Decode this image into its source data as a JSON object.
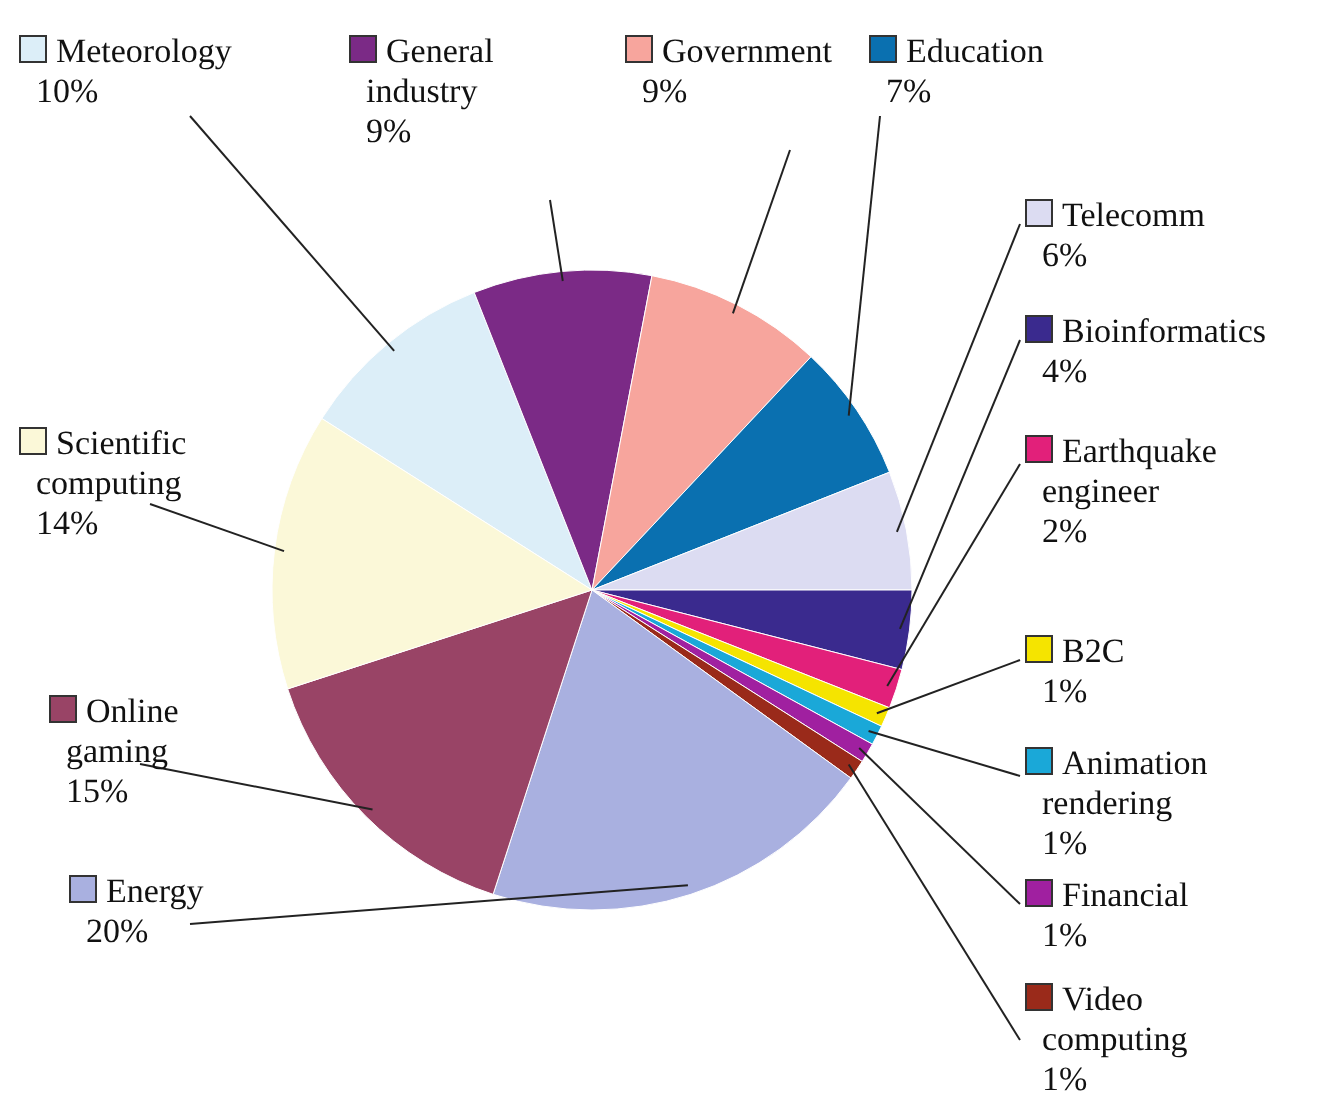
{
  "chart_data": {
    "type": "pie",
    "categories": [
      "Meteorology",
      "General industry",
      "Government",
      "Education",
      "Telecomm",
      "Bioinformatics",
      "Earthquake engineer",
      "B2C",
      "Animation rendering",
      "Financial",
      "Video computing",
      "Energy",
      "Online gaming",
      "Scientific computing"
    ],
    "values": [
      10,
      9,
      9,
      7,
      6,
      4,
      2,
      1,
      1,
      1,
      1,
      20,
      15,
      14
    ],
    "value_labels": [
      "10%",
      "9%",
      "9%",
      "7%",
      "6%",
      "4%",
      "2%",
      "1%",
      "1%",
      "1%",
      "1%",
      "20%",
      "15%",
      "14%"
    ],
    "legend": "right",
    "colors": [
      "#dceef8",
      "#7b2a86",
      "#f7a59d",
      "#0a70b0",
      "#dcdcf2",
      "#3a2a8e",
      "#e2207a",
      "#f5e400",
      "#1aa8d8",
      "#a020a0",
      "#9a2a1a",
      "#a9b0e0",
      "#994466",
      "#fbf8d8"
    ]
  }
}
